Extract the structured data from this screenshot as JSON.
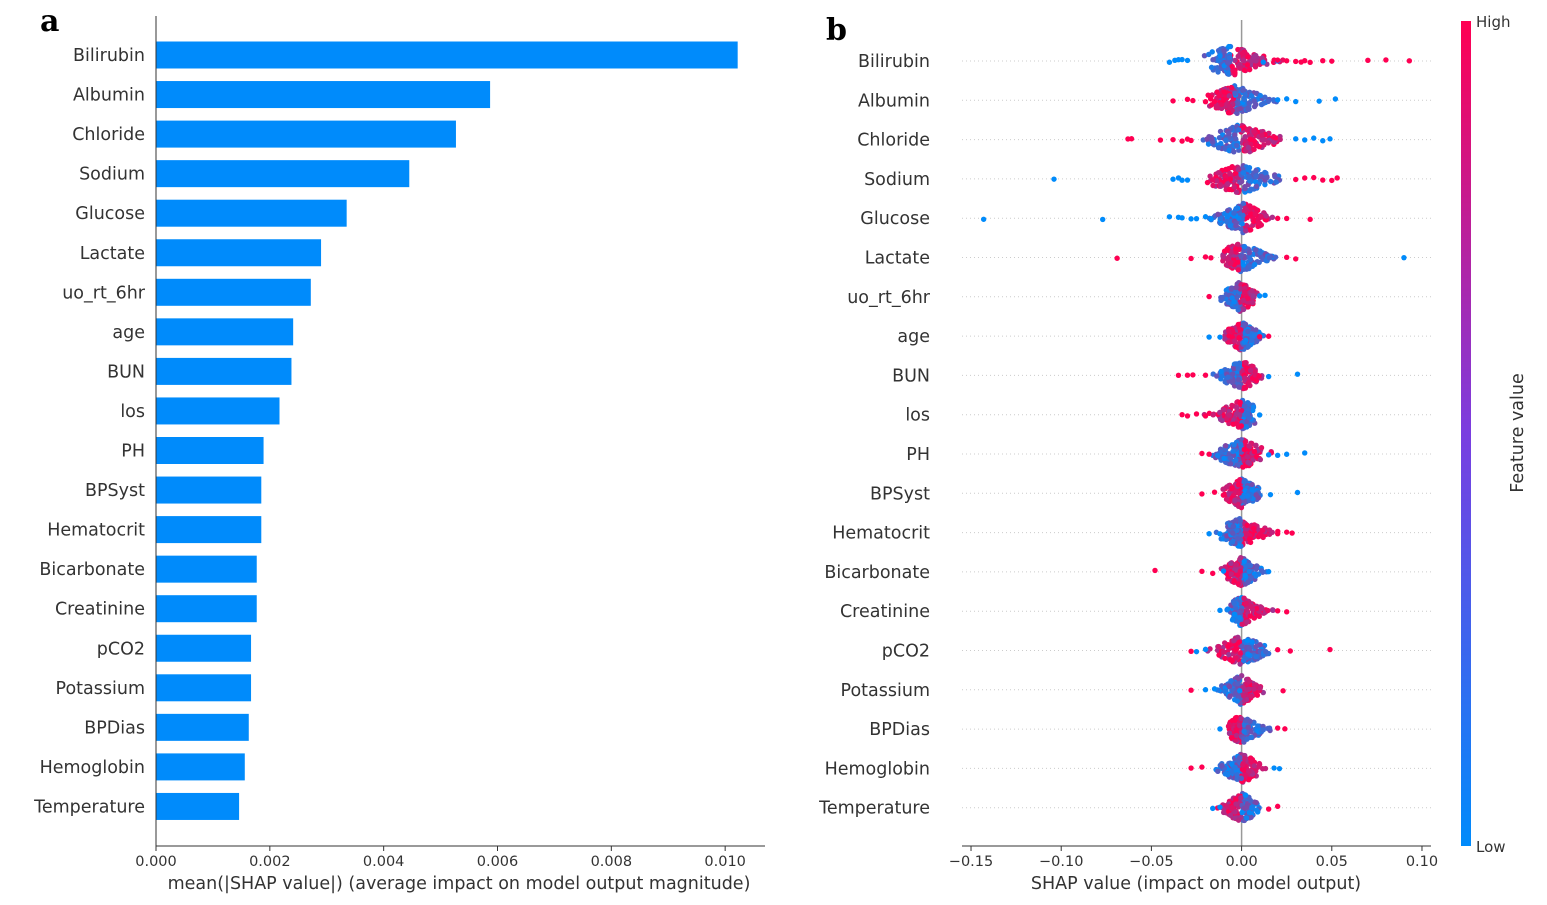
{
  "figure": {
    "panel_a_letter": "a",
    "panel_b_letter": "b"
  },
  "chart_data": [
    {
      "type": "bar",
      "orientation": "horizontal",
      "panel": "a",
      "categories": [
        "Bilirubin",
        "Albumin",
        "Chloride",
        "Sodium",
        "Glucose",
        "Lactate",
        "uo_rt_6hr",
        "age",
        "BUN",
        "los",
        "PH",
        "BPSyst",
        "Hematocrit",
        "Bicarbonate",
        "Creatinine",
        "pCO2",
        "Potassium",
        "BPDias",
        "Hemoglobin",
        "Temperature"
      ],
      "values": [
        0.01022,
        0.00587,
        0.00527,
        0.00445,
        0.00335,
        0.0029,
        0.00272,
        0.00241,
        0.00238,
        0.00217,
        0.00189,
        0.00185,
        0.00185,
        0.00177,
        0.00177,
        0.00167,
        0.00167,
        0.00163,
        0.00156,
        0.00146
      ],
      "xlabel": "mean(|SHAP value|) (average impact on model output magnitude)",
      "xlim": [
        0.0,
        0.0107
      ],
      "xticks": [
        "0.000",
        "0.002",
        "0.004",
        "0.006",
        "0.008",
        "0.010"
      ],
      "xtick_values": [
        0.0,
        0.002,
        0.004,
        0.006,
        0.008,
        0.01
      ],
      "color": "#008bfb",
      "grid": false
    },
    {
      "type": "scatter",
      "subtype": "beeswarm",
      "panel": "b",
      "categories": [
        "Bilirubin",
        "Albumin",
        "Chloride",
        "Sodium",
        "Glucose",
        "Lactate",
        "uo_rt_6hr",
        "age",
        "BUN",
        "los",
        "PH",
        "BPSyst",
        "Hematocrit",
        "Bicarbonate",
        "Creatinine",
        "pCO2",
        "Potassium",
        "BPDias",
        "Hemoglobin",
        "Temperature"
      ],
      "xlabel": "SHAP value (impact on model output)",
      "xlim": [
        -0.155,
        0.105
      ],
      "xticks": [
        "−0.15",
        "−0.10",
        "−0.05",
        "0.00",
        "0.05",
        "0.10"
      ],
      "xtick_values": [
        -0.15,
        -0.1,
        -0.05,
        0.0,
        0.05,
        0.1
      ],
      "colorbar": {
        "label": "Feature value",
        "high_label": "High",
        "low_label": "Low",
        "low_color": "#008bfb",
        "high_color": "#ff0052"
      },
      "points": [
        {
          "feature": "Bilirubin",
          "low_color_x": [
            -0.04,
            -0.037,
            -0.035,
            -0.033,
            -0.03,
            0.012,
            0.02
          ],
          "high_color_x": [
            0.02,
            0.025,
            0.03,
            0.033,
            0.035,
            0.038,
            0.045,
            0.05,
            0.07,
            0.08,
            0.093
          ],
          "range": [
            -0.025,
            0.03
          ],
          "peak": -0.006
        },
        {
          "feature": "Albumin",
          "low_color_x": [
            0.02,
            0.025,
            0.03,
            0.043,
            0.052
          ],
          "high_color_x": [
            -0.038,
            -0.03,
            -0.027,
            -0.02,
            -0.015,
            -0.01
          ],
          "range": [
            -0.022,
            0.024
          ],
          "peak": -0.004
        },
        {
          "feature": "Chloride",
          "low_color_x": [
            0.03,
            0.035,
            0.04,
            0.045,
            0.049
          ],
          "high_color_x": [
            -0.063,
            -0.061,
            -0.045,
            -0.038,
            -0.033,
            -0.03,
            -0.028
          ],
          "range": [
            -0.026,
            0.03
          ],
          "peak": -0.001
        },
        {
          "feature": "Sodium",
          "low_color_x": [
            -0.104,
            -0.038,
            -0.035,
            -0.033,
            -0.03
          ],
          "high_color_x": [
            0.03,
            0.035,
            0.04,
            0.045,
            0.05,
            0.053
          ],
          "range": [
            -0.026,
            0.028
          ],
          "peak": -0.001
        },
        {
          "feature": "Glucose",
          "low_color_x": [
            -0.143,
            -0.077,
            -0.04,
            -0.035,
            -0.033,
            -0.028,
            -0.025,
            -0.02,
            -0.017
          ],
          "high_color_x": [
            0.02,
            0.025,
            0.038
          ],
          "range": [
            -0.02,
            0.02
          ],
          "peak": 0.001
        },
        {
          "feature": "Lactate",
          "low_color_x": [
            0.09
          ],
          "high_color_x": [
            -0.069,
            -0.028,
            -0.02,
            -0.017,
            0.025,
            0.03
          ],
          "range": [
            -0.015,
            0.025
          ],
          "peak": -0.001
        },
        {
          "feature": "uo_rt_6hr",
          "low_color_x": [
            0.01,
            0.013
          ],
          "high_color_x": [
            -0.018
          ],
          "range": [
            -0.016,
            0.012
          ],
          "peak": -0.001
        },
        {
          "feature": "age",
          "low_color_x": [
            -0.018,
            -0.012
          ],
          "high_color_x": [
            0.01,
            0.015
          ],
          "range": [
            -0.012,
            0.015
          ],
          "peak": 0.0
        },
        {
          "feature": "BUN",
          "low_color_x": [
            0.031,
            0.015
          ],
          "high_color_x": [
            -0.035,
            -0.03,
            -0.027,
            -0.02
          ],
          "range": [
            -0.018,
            0.015
          ],
          "peak": 0.0
        },
        {
          "feature": "los",
          "low_color_x": [
            0.01
          ],
          "high_color_x": [
            -0.033,
            -0.03,
            -0.025,
            -0.02
          ],
          "range": [
            -0.025,
            0.01
          ],
          "peak": 0.0
        },
        {
          "feature": "PH",
          "low_color_x": [
            0.015,
            0.02,
            0.025,
            0.035
          ],
          "high_color_x": [
            -0.022,
            -0.018
          ],
          "range": [
            -0.02,
            0.02
          ],
          "peak": 0.0
        },
        {
          "feature": "BPSyst",
          "low_color_x": [
            0.016,
            0.031
          ],
          "high_color_x": [
            -0.022,
            -0.015
          ],
          "range": [
            -0.015,
            0.015
          ],
          "peak": 0.0
        },
        {
          "feature": "Hematocrit",
          "low_color_x": [
            -0.018,
            -0.012
          ],
          "high_color_x": [
            0.02,
            0.025,
            0.028
          ],
          "range": [
            -0.015,
            0.025
          ],
          "peak": 0.0
        },
        {
          "feature": "Bicarbonate",
          "low_color_x": [
            0.015,
            -0.01
          ],
          "high_color_x": [
            -0.048,
            -0.022,
            -0.016
          ],
          "range": [
            -0.015,
            0.015
          ],
          "peak": 0.0
        },
        {
          "feature": "Creatinine",
          "low_color_x": [
            -0.012
          ],
          "high_color_x": [
            0.02,
            0.025
          ],
          "range": [
            -0.01,
            0.02
          ],
          "peak": 0.0
        },
        {
          "feature": "pCO2",
          "low_color_x": [
            -0.025,
            -0.02
          ],
          "high_color_x": [
            -0.028,
            0.02,
            0.027,
            0.049
          ],
          "range": [
            -0.02,
            0.02
          ],
          "peak": 0.0
        },
        {
          "feature": "Potassium",
          "low_color_x": [
            -0.02,
            -0.015
          ],
          "high_color_x": [
            -0.028,
            0.023
          ],
          "range": [
            -0.015,
            0.015
          ],
          "peak": 0.0
        },
        {
          "feature": "BPDias",
          "low_color_x": [
            -0.012
          ],
          "high_color_x": [
            0.02,
            0.024
          ],
          "range": [
            -0.01,
            0.022
          ],
          "peak": 0.0
        },
        {
          "feature": "Hemoglobin",
          "low_color_x": [
            0.018,
            0.021
          ],
          "high_color_x": [
            -0.028,
            -0.022
          ],
          "range": [
            -0.018,
            0.015
          ],
          "peak": 0.0
        },
        {
          "feature": "Temperature",
          "low_color_x": [
            -0.016,
            -0.012
          ],
          "high_color_x": [
            0.015,
            0.02
          ],
          "range": [
            -0.015,
            0.015
          ],
          "peak": 0.0
        }
      ],
      "zero_line": true,
      "grid": false
    }
  ]
}
